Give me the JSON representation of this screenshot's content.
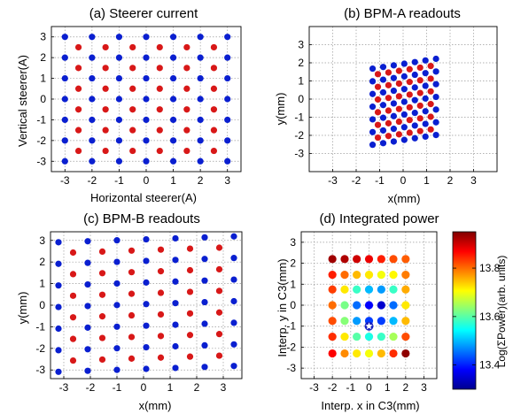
{
  "figure": {
    "colorbar": {
      "label": "Log(ΣPower)(arb. units)",
      "ticks": [
        "13.4",
        "13.6",
        "13.8"
      ],
      "range": [
        13.3,
        13.95
      ],
      "colormap": "jet"
    }
  },
  "chart_data": [
    {
      "type": "scatter",
      "title": "(a) Steerer current",
      "xlabel": "Horizontal steerer(A)",
      "ylabel": "Vertical steerer(A)",
      "xlim": [
        -3.5,
        3.5
      ],
      "ylim": [
        -3.5,
        3.5
      ],
      "xticks": [
        -3,
        -2,
        -1,
        0,
        1,
        2,
        3
      ],
      "yticks": [
        -3,
        -2,
        -1,
        0,
        1,
        2,
        3
      ],
      "grid": true,
      "colors": {
        "blue": "#0a1fd0",
        "red": "#d81818"
      },
      "series": [
        {
          "color": "blue",
          "grid": {
            "x": [
              -3,
              -2,
              -1,
              0,
              1,
              2,
              3
            ],
            "y": [
              -3,
              -2,
              -1,
              0,
              1,
              2,
              3
            ]
          }
        },
        {
          "color": "red",
          "grid": {
            "x": [
              -2.5,
              -1.5,
              -0.5,
              0.5,
              1.5,
              2.5
            ],
            "y": [
              -2.5,
              -1.5,
              -0.5,
              0.5,
              1.5,
              2.5
            ]
          }
        }
      ]
    },
    {
      "type": "scatter",
      "title": "(b) BPM-A readouts",
      "xlabel": "x(mm)",
      "ylabel": "y(mm)",
      "xlim": [
        -4,
        4
      ],
      "ylim": [
        -4,
        4
      ],
      "xticks": [
        -3,
        -2,
        -1,
        0,
        1,
        2,
        3
      ],
      "yticks": [
        -3,
        -2,
        -1,
        0,
        1,
        2,
        3
      ],
      "grid": true,
      "colors": {
        "blue": "#0a1fd0",
        "red": "#d81818"
      },
      "transform": {
        "sx": 0.45,
        "sy": 0.7,
        "skew_y_per_x": 0.09,
        "dx": 0.05,
        "dy": -0.15
      },
      "series": [
        {
          "color": "blue",
          "grid": {
            "x": [
              -3,
              -2,
              -1,
              0,
              1,
              2,
              3
            ],
            "y": [
              -3,
              -2,
              -1,
              0,
              1,
              2,
              3
            ]
          }
        },
        {
          "color": "red",
          "grid": {
            "x": [
              -2.5,
              -1.5,
              -0.5,
              0.5,
              1.5,
              2.5
            ],
            "y": [
              -2.5,
              -1.5,
              -0.5,
              0.5,
              1.5,
              2.5
            ]
          }
        }
      ]
    },
    {
      "type": "scatter",
      "title": "(c) BPM-B readouts",
      "xlabel": "x(mm)",
      "ylabel": "y(mm)",
      "xlim": [
        -3.5,
        3.7
      ],
      "ylim": [
        -3.4,
        3.4
      ],
      "xticks": [
        -3,
        -2,
        -1,
        0,
        1,
        2,
        3
      ],
      "yticks": [
        -3,
        -2,
        -1,
        0,
        1,
        2,
        3
      ],
      "grid": true,
      "colors": {
        "blue": "#0a1fd0",
        "red": "#d81818"
      },
      "transform": {
        "sx": 1.1,
        "sy": 1.0,
        "skew_y_per_x": 0.045,
        "dx": 0.1,
        "dy": 0.05
      },
      "series": [
        {
          "color": "blue",
          "grid": {
            "x": [
              -3,
              -2,
              -1,
              0,
              1,
              2,
              3
            ],
            "y": [
              -3,
              -2,
              -1,
              0,
              1,
              2,
              3
            ]
          }
        },
        {
          "color": "red",
          "grid": {
            "x": [
              -2.5,
              -1.5,
              -0.5,
              0.5,
              1.5,
              2.5
            ],
            "y": [
              -2.5,
              -1.5,
              -0.5,
              0.5,
              1.5,
              2.5
            ]
          }
        }
      ]
    },
    {
      "type": "heatmap",
      "title": "(d) Integrated power",
      "xlabel": "Interp. x in C3(mm)",
      "ylabel": "Interp. y in C3(mm)",
      "xlim": [
        -3.7,
        3.7
      ],
      "ylim": [
        -3.5,
        3.5
      ],
      "xticks": [
        -3,
        -2,
        -1,
        0,
        1,
        2,
        3
      ],
      "yticks": [
        -3,
        -2,
        -1,
        0,
        1,
        2,
        3
      ],
      "grid": true,
      "x": [
        -2,
        -1.33,
        -0.67,
        0,
        0.67,
        1.33,
        2
      ],
      "y": [
        2.2,
        1.45,
        0.75,
        0,
        -0.75,
        -1.5,
        -2.3
      ],
      "values": [
        [
          13.93,
          13.92,
          13.9,
          13.88,
          13.85,
          13.82,
          13.81
        ],
        [
          13.85,
          13.8,
          13.75,
          13.72,
          13.7,
          13.71,
          13.79
        ],
        [
          13.83,
          13.72,
          13.58,
          13.5,
          13.48,
          13.58,
          13.76
        ],
        [
          13.8,
          13.62,
          13.45,
          13.38,
          13.35,
          13.45,
          13.72
        ],
        [
          13.82,
          13.63,
          13.48,
          13.42,
          13.42,
          13.5,
          13.75
        ],
        [
          13.84,
          13.72,
          13.6,
          13.56,
          13.58,
          13.65,
          13.82
        ],
        [
          13.87,
          13.78,
          13.72,
          13.7,
          13.75,
          13.84,
          13.94
        ]
      ],
      "star_marker": {
        "x": 0,
        "y": -1
      }
    }
  ]
}
